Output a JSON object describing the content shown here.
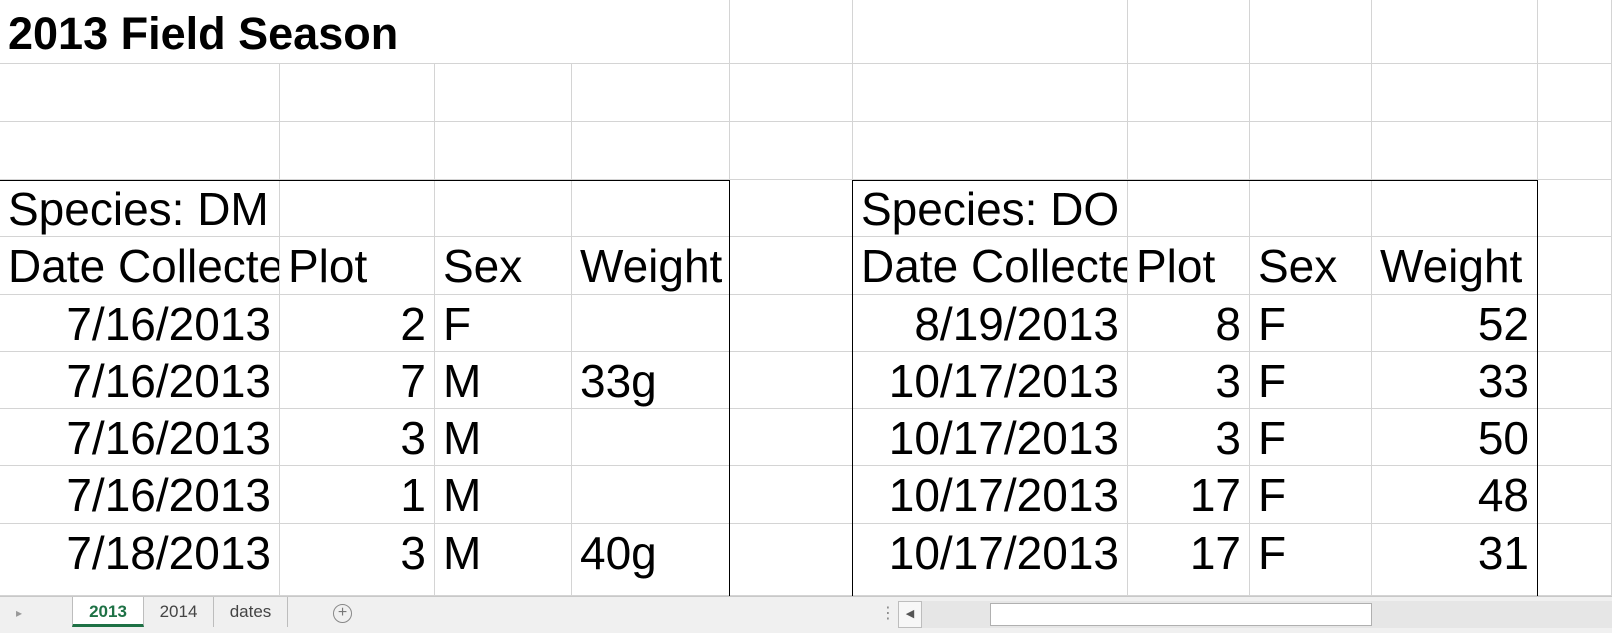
{
  "sheet": {
    "title": "2013 Field Season",
    "tables": [
      {
        "species_label": "Species: DM",
        "headers": [
          "Date Collected",
          "Plot",
          "Sex",
          "Weight"
        ],
        "rows": [
          [
            "7/16/2013",
            "2",
            "F",
            ""
          ],
          [
            "7/16/2013",
            "7",
            "M",
            "33g"
          ],
          [
            "7/16/2013",
            "3",
            "M",
            ""
          ],
          [
            "7/16/2013",
            "1",
            "M",
            ""
          ],
          [
            "7/18/2013",
            "3",
            "M",
            "40g"
          ]
        ]
      },
      {
        "species_label": "Species: DO",
        "headers": [
          "Date Collected",
          "Plot",
          "Sex",
          "Weight"
        ],
        "rows": [
          [
            "8/19/2013",
            "8",
            "F",
            "52"
          ],
          [
            "10/17/2013",
            "3",
            "F",
            "33"
          ],
          [
            "10/17/2013",
            "3",
            "F",
            "50"
          ],
          [
            "10/17/2013",
            "17",
            "F",
            "48"
          ],
          [
            "10/17/2013",
            "17",
            "F",
            "31"
          ]
        ]
      }
    ]
  },
  "tabs": [
    {
      "label": "2013",
      "active": true
    },
    {
      "label": "2014",
      "active": false
    },
    {
      "label": "dates",
      "active": false
    }
  ],
  "tabbar": {
    "prev_icon": "triangle-right-icon",
    "add_icon": "plus-circle-icon",
    "add_symbol": "+",
    "splitter_icon": "vertical-dots-icon",
    "scroll_left_icon": "triangle-left-icon"
  },
  "colors": {
    "active_tab": "#1e7145",
    "gridline": "#d4d4d4",
    "table_border": "#000000"
  }
}
